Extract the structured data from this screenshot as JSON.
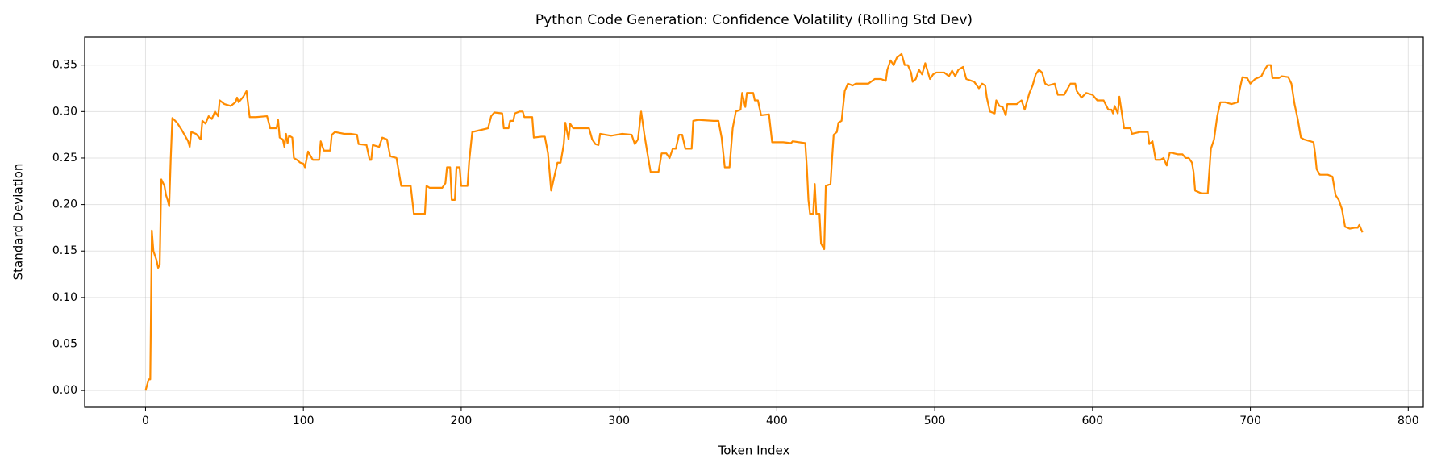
{
  "chart_data": {
    "type": "line",
    "title": "Python Code Generation: Confidence Volatility (Rolling Std Dev)",
    "xlabel": "Token Index",
    "ylabel": "Standard Deviation",
    "xlim": [
      -38.55,
      809.55
    ],
    "ylim": [
      -0.0181,
      0.3801
    ],
    "xticks": [
      0,
      100,
      200,
      300,
      400,
      500,
      600,
      700,
      800
    ],
    "yticks": [
      {
        "value": 0,
        "label": "0.00"
      },
      0.05,
      {
        "value": 0.1,
        "label": "0.10"
      },
      0.15,
      {
        "value": 0.2,
        "label": "0.20"
      },
      0.25,
      {
        "value": 0.3,
        "label": "0.30"
      },
      0.35
    ],
    "grid": true,
    "series": [
      {
        "color": "#ff8c00",
        "x": [
          0,
          2,
          3,
          4,
          5,
          7,
          8,
          9,
          10,
          12,
          13,
          14,
          15,
          16,
          17,
          20,
          23,
          27,
          28,
          29,
          32,
          35,
          36,
          38,
          40,
          42,
          44,
          46,
          47,
          50,
          54,
          57,
          58,
          59,
          62,
          64,
          66,
          70,
          77,
          79,
          83,
          84,
          85,
          87,
          88,
          89,
          90,
          91,
          93,
          94,
          96,
          98,
          100,
          101,
          103,
          106,
          110,
          111,
          113,
          117,
          118,
          120,
          126,
          130,
          134,
          135,
          140,
          142,
          143,
          144,
          148,
          150,
          153,
          155,
          159,
          162,
          168,
          170,
          177,
          178,
          180,
          188,
          190,
          191,
          193,
          194,
          196,
          197,
          199,
          200,
          204,
          205,
          207,
          212,
          217,
          219,
          221,
          226,
          227,
          230,
          231,
          233,
          234,
          237,
          239,
          240,
          245,
          246,
          251,
          253,
          255,
          257,
          259,
          261,
          263,
          265,
          266,
          268,
          269,
          271,
          281,
          283,
          285,
          287,
          288,
          295,
          302,
          308,
          310,
          312,
          314,
          316,
          318,
          320,
          325,
          327,
          330,
          332,
          334,
          336,
          338,
          340,
          342,
          346,
          347,
          350,
          360,
          363,
          365,
          367,
          370,
          372,
          374,
          377,
          378,
          380,
          381,
          385,
          386,
          388,
          390,
          395,
          397,
          404,
          409,
          410,
          418,
          419,
          420,
          421,
          423,
          424,
          425,
          427,
          428,
          430,
          431,
          434,
          435,
          436,
          438,
          439,
          441,
          443,
          445,
          448,
          450,
          454,
          458,
          462,
          466,
          469,
          470,
          472,
          474,
          476,
          479,
          481,
          483,
          485,
          486,
          488,
          490,
          492,
          494,
          497,
          499,
          501,
          506,
          509,
          511,
          513,
          515,
          518,
          520,
          525,
          528,
          530,
          532,
          533,
          535,
          538,
          539,
          541,
          543,
          545,
          546,
          552,
          555,
          557,
          560,
          562,
          564,
          566,
          568,
          570,
          572,
          576,
          578,
          582,
          586,
          589,
          590,
          593,
          596,
          600,
          603,
          607,
          610,
          612,
          613,
          614,
          616,
          617,
          620,
          624,
          625,
          630,
          635,
          636,
          638,
          640,
          643,
          645,
          647,
          649,
          654,
          657,
          659,
          661,
          663,
          664,
          665,
          669,
          673,
          675,
          677,
          679,
          681,
          684,
          688,
          692,
          693,
          695,
          698,
          700,
          703,
          707,
          709,
          711,
          713,
          714,
          718,
          720,
          724,
          726,
          728,
          730,
          732,
          734,
          738,
          740,
          741,
          742,
          744,
          749,
          752,
          754,
          756,
          758,
          760,
          763,
          766,
          768,
          769,
          771
        ],
        "values": [
          0.0,
          0.012,
          0.012,
          0.172,
          0.15,
          0.14,
          0.132,
          0.135,
          0.227,
          0.22,
          0.21,
          0.205,
          0.198,
          0.25,
          0.293,
          0.288,
          0.28,
          0.268,
          0.262,
          0.278,
          0.276,
          0.27,
          0.29,
          0.287,
          0.295,
          0.292,
          0.3,
          0.295,
          0.312,
          0.308,
          0.306,
          0.31,
          0.315,
          0.31,
          0.316,
          0.322,
          0.294,
          0.294,
          0.295,
          0.282,
          0.282,
          0.291,
          0.272,
          0.27,
          0.262,
          0.276,
          0.266,
          0.274,
          0.272,
          0.25,
          0.248,
          0.245,
          0.244,
          0.24,
          0.257,
          0.248,
          0.248,
          0.268,
          0.258,
          0.258,
          0.275,
          0.278,
          0.276,
          0.276,
          0.275,
          0.265,
          0.264,
          0.248,
          0.248,
          0.264,
          0.262,
          0.272,
          0.27,
          0.252,
          0.25,
          0.22,
          0.22,
          0.19,
          0.19,
          0.22,
          0.218,
          0.218,
          0.223,
          0.24,
          0.24,
          0.205,
          0.205,
          0.24,
          0.24,
          0.22,
          0.22,
          0.245,
          0.278,
          0.28,
          0.282,
          0.295,
          0.299,
          0.298,
          0.282,
          0.282,
          0.29,
          0.29,
          0.298,
          0.3,
          0.3,
          0.294,
          0.294,
          0.272,
          0.273,
          0.273,
          0.255,
          0.215,
          0.23,
          0.245,
          0.245,
          0.265,
          0.288,
          0.27,
          0.287,
          0.282,
          0.282,
          0.27,
          0.265,
          0.264,
          0.276,
          0.274,
          0.276,
          0.275,
          0.265,
          0.27,
          0.3,
          0.276,
          0.255,
          0.235,
          0.235,
          0.255,
          0.255,
          0.25,
          0.26,
          0.26,
          0.275,
          0.275,
          0.26,
          0.26,
          0.29,
          0.291,
          0.29,
          0.29,
          0.272,
          0.24,
          0.24,
          0.282,
          0.3,
          0.302,
          0.32,
          0.305,
          0.32,
          0.32,
          0.312,
          0.312,
          0.296,
          0.297,
          0.267,
          0.267,
          0.266,
          0.268,
          0.266,
          0.24,
          0.205,
          0.19,
          0.19,
          0.222,
          0.19,
          0.19,
          0.158,
          0.152,
          0.22,
          0.222,
          0.25,
          0.275,
          0.278,
          0.288,
          0.29,
          0.322,
          0.33,
          0.328,
          0.33,
          0.33,
          0.33,
          0.335,
          0.335,
          0.333,
          0.345,
          0.355,
          0.35,
          0.358,
          0.362,
          0.35,
          0.35,
          0.342,
          0.332,
          0.335,
          0.345,
          0.34,
          0.352,
          0.335,
          0.34,
          0.342,
          0.342,
          0.338,
          0.344,
          0.338,
          0.345,
          0.348,
          0.335,
          0.332,
          0.325,
          0.33,
          0.328,
          0.315,
          0.3,
          0.298,
          0.312,
          0.306,
          0.305,
          0.296,
          0.308,
          0.308,
          0.312,
          0.302,
          0.32,
          0.328,
          0.34,
          0.345,
          0.342,
          0.33,
          0.328,
          0.33,
          0.318,
          0.318,
          0.33,
          0.33,
          0.322,
          0.315,
          0.32,
          0.318,
          0.312,
          0.312,
          0.302,
          0.302,
          0.298,
          0.306,
          0.298,
          0.316,
          0.282,
          0.282,
          0.276,
          0.278,
          0.278,
          0.265,
          0.268,
          0.248,
          0.248,
          0.25,
          0.242,
          0.256,
          0.254,
          0.254,
          0.25,
          0.25,
          0.245,
          0.235,
          0.215,
          0.212,
          0.212,
          0.26,
          0.27,
          0.295,
          0.31,
          0.31,
          0.308,
          0.31,
          0.322,
          0.337,
          0.336,
          0.33,
          0.335,
          0.338,
          0.345,
          0.35,
          0.35,
          0.336,
          0.336,
          0.338,
          0.337,
          0.33,
          0.308,
          0.292,
          0.272,
          0.27,
          0.268,
          0.267,
          0.255,
          0.238,
          0.232,
          0.232,
          0.23,
          0.21,
          0.205,
          0.195,
          0.176,
          0.174,
          0.175,
          0.175,
          0.178,
          0.17
        ]
      }
    ]
  }
}
